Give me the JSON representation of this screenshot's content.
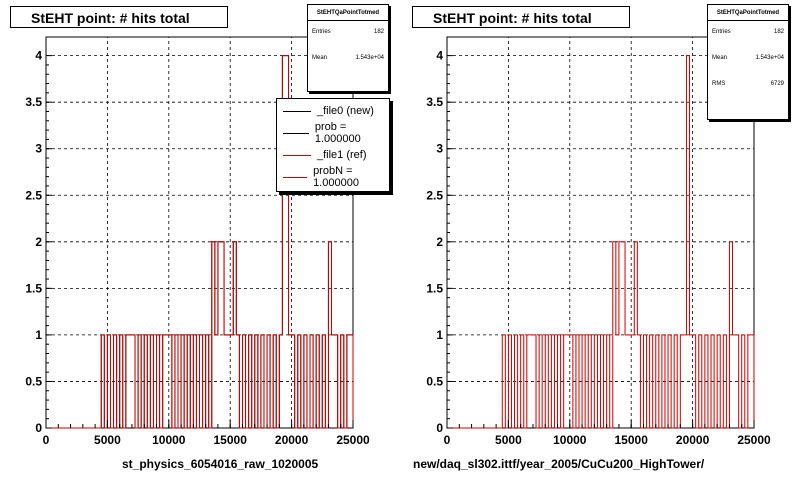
{
  "chart_data": [
    {
      "type": "histogram",
      "title": "StEHT point: # hits total",
      "xlabel": "st_physics_6054016_raw_1020005",
      "ylabel": "",
      "xlim": [
        0,
        25000
      ],
      "ylim": [
        0,
        4.2
      ],
      "x_ticks": [
        0,
        5000,
        10000,
        15000,
        20000,
        25000
      ],
      "y_ticks": [
        0,
        0.5,
        1,
        1.5,
        2,
        2.5,
        3,
        3.5,
        4
      ],
      "grid": true,
      "bin_width": 250,
      "series": [
        {
          "name": "_file0 (new)",
          "color": "#000000",
          "x": [
            4500,
            5000,
            5500,
            6000,
            6500,
            6750,
            7000,
            7500,
            8000,
            8500,
            9000,
            9500,
            9750,
            10000,
            10500,
            11000,
            11500,
            12000,
            12500,
            13000,
            13500,
            13750,
            14000,
            14250,
            14500,
            14750,
            15000,
            15250,
            15500,
            16000,
            16500,
            17000,
            17500,
            18000,
            18500,
            19000,
            19250,
            19500,
            19750,
            20000,
            20500,
            21000,
            21500,
            22000,
            22500,
            23000,
            23250,
            23500,
            24000,
            24500,
            24750
          ],
          "y": [
            1,
            1,
            1,
            1,
            1,
            1,
            1,
            1,
            1,
            1,
            1,
            1,
            1,
            1,
            1,
            1,
            1,
            1,
            1,
            1,
            2,
            1,
            2,
            2,
            1,
            1,
            1,
            2,
            1,
            1,
            1,
            1,
            1,
            1,
            1,
            1,
            4,
            4,
            1,
            1,
            1,
            1,
            1,
            1,
            1,
            2,
            1,
            1,
            1,
            1,
            1
          ]
        },
        {
          "name": "_file1 (ref)",
          "color": "#cc0000",
          "x": [
            4500,
            5000,
            5500,
            6000,
            6500,
            6750,
            7000,
            7500,
            8000,
            8500,
            9000,
            9500,
            9750,
            10000,
            10500,
            11000,
            11500,
            12000,
            12500,
            13000,
            13500,
            13750,
            14000,
            14250,
            14500,
            14750,
            15000,
            15250,
            15500,
            16000,
            16500,
            17000,
            17500,
            18000,
            18500,
            19000,
            19250,
            19500,
            19750,
            20000,
            20500,
            21000,
            21500,
            22000,
            22500,
            23000,
            23250,
            23500,
            24000,
            24500,
            24750
          ],
          "y": [
            1,
            1,
            1,
            1,
            1,
            1,
            1,
            1,
            1,
            1,
            1,
            1,
            1,
            1,
            1,
            1,
            1,
            1,
            1,
            1,
            2,
            1,
            2,
            2,
            1,
            1,
            1,
            2,
            1,
            1,
            1,
            1,
            1,
            1,
            1,
            1,
            4,
            4,
            1,
            1,
            1,
            1,
            1,
            1,
            1,
            2,
            1,
            1,
            1,
            1,
            1
          ]
        }
      ],
      "statbox": {
        "name": "StEHTQaPointTotmed",
        "entries_label": "Entries",
        "entries": "182",
        "mean_label": "Mean",
        "mean": "1.543e+04"
      },
      "legend": [
        "_file0 (new)",
        "prob = 1.000000",
        "_file1 (ref)",
        "probN = 1.000000"
      ]
    },
    {
      "type": "histogram",
      "title": "StEHT point: # hits total",
      "xlabel": "new/daq_sl302.ittf/year_2005/CuCu200_HighTower/",
      "ylabel": "",
      "xlim": [
        0,
        25000
      ],
      "ylim": [
        0,
        4.2
      ],
      "x_ticks": [
        0,
        5000,
        10000,
        15000,
        20000,
        25000
      ],
      "y_ticks": [
        0,
        0.5,
        1,
        1.5,
        2,
        2.5,
        3,
        3.5,
        4
      ],
      "grid": true,
      "bin_width": 250,
      "series": [
        {
          "name": "",
          "color": "#cc0000",
          "x": [
            4500,
            5000,
            5500,
            6000,
            6500,
            6750,
            7000,
            7500,
            8000,
            8500,
            9000,
            9500,
            9750,
            10000,
            10500,
            11000,
            11500,
            12000,
            12500,
            13000,
            13500,
            13750,
            14000,
            14250,
            14500,
            14750,
            15000,
            15250,
            15500,
            16000,
            16500,
            17000,
            17500,
            18000,
            18500,
            19000,
            19250,
            19500,
            19750,
            20000,
            20500,
            21000,
            21500,
            22000,
            22500,
            23000,
            23250,
            23500,
            24000,
            24500,
            24750
          ],
          "y": [
            1,
            1,
            1,
            1,
            1,
            1,
            1,
            1,
            1,
            1,
            1,
            1,
            1,
            1,
            1,
            1,
            1,
            1,
            1,
            1,
            2,
            1,
            2,
            2,
            1,
            1,
            1,
            2,
            1,
            1,
            1,
            1,
            1,
            1,
            1,
            1,
            1,
            4,
            1,
            1,
            1,
            1,
            1,
            1,
            1,
            2,
            1,
            1,
            1,
            1,
            1
          ]
        }
      ],
      "statbox": {
        "name": "StEHTQaPointTotmed",
        "entries_label": "Entries",
        "entries": "182",
        "mean_label": "Mean",
        "mean": "1.543e+04",
        "rms_label": "RMS",
        "rms": "6729"
      }
    }
  ]
}
